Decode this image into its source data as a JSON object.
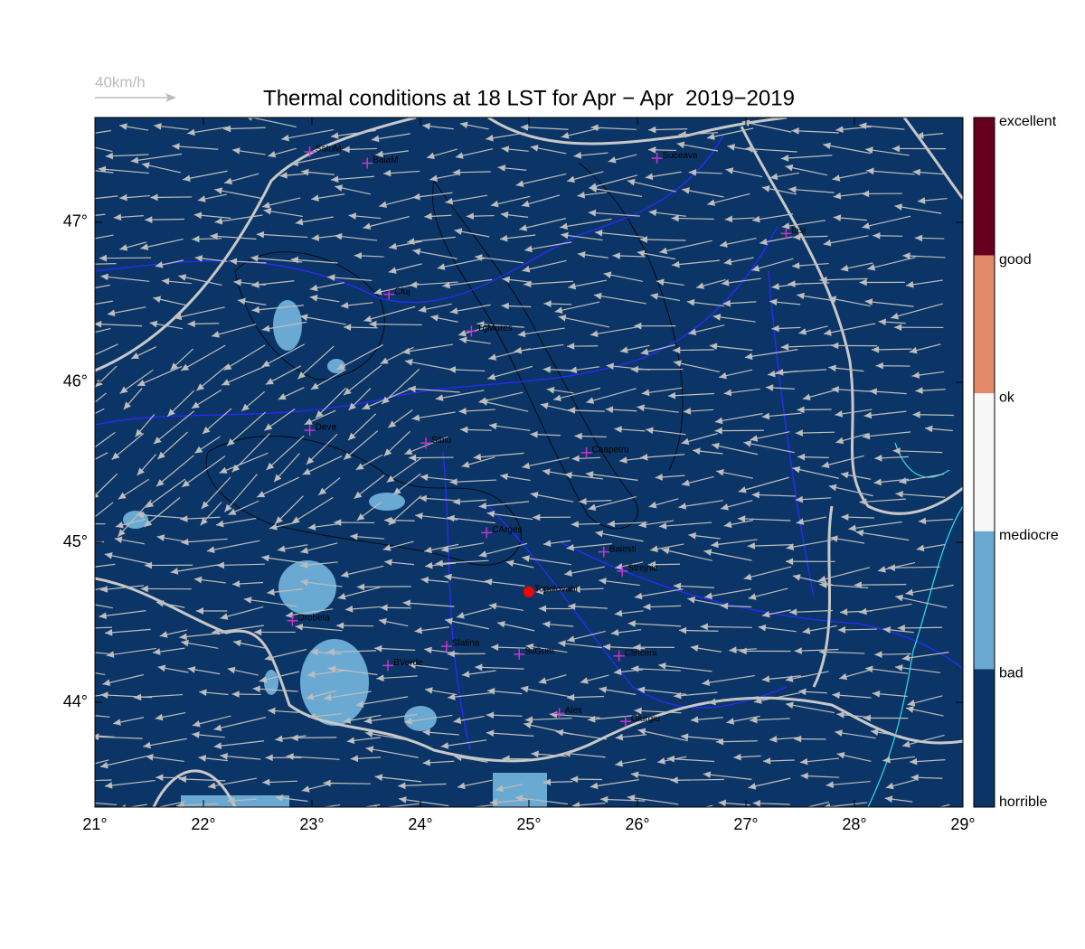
{
  "map": {
    "title": "Thermal conditions at 18 LST for Apr − Apr  2019−2019",
    "wind_scale": "40km/h",
    "xlim": [
      21,
      29
    ],
    "ylim": [
      43.345,
      47.655
    ],
    "xticks": [
      {
        "value": 21,
        "label": "21°"
      },
      {
        "value": 22,
        "label": "22°"
      },
      {
        "value": 23,
        "label": "23°"
      },
      {
        "value": 24,
        "label": "24°"
      },
      {
        "value": 25,
        "label": "25°"
      },
      {
        "value": 26,
        "label": "26°"
      },
      {
        "value": 27,
        "label": "27°"
      },
      {
        "value": 28,
        "label": "28°"
      },
      {
        "value": 29,
        "label": "29°"
      }
    ],
    "yticks": [
      {
        "value": 44,
        "label": "44°"
      },
      {
        "value": 45,
        "label": "45°"
      },
      {
        "value": 46,
        "label": "46°"
      },
      {
        "value": 47,
        "label": "47°"
      }
    ],
    "colorbar": {
      "labels": [
        "excellent",
        "good",
        "ok",
        "mediocre",
        "bad",
        "horrible"
      ],
      "colors": [
        "#67001f",
        "#e48a6a",
        "#f7f7f7",
        "#6aaad2",
        "#0b3566"
      ]
    },
    "cities": [
      {
        "name": "SatuM",
        "lon": 22.98,
        "lat": 47.44,
        "marker": "cross"
      },
      {
        "name": "BaiaM",
        "lon": 23.51,
        "lat": 47.37,
        "marker": "cross"
      },
      {
        "name": "Suceava",
        "lon": 26.18,
        "lat": 47.4,
        "marker": "cross"
      },
      {
        "name": "Iasi",
        "lon": 27.37,
        "lat": 46.93,
        "marker": "cross"
      },
      {
        "name": "Cluj",
        "lon": 23.71,
        "lat": 46.55,
        "marker": "cross"
      },
      {
        "name": "TgMures",
        "lon": 24.47,
        "lat": 46.32,
        "marker": "cross"
      },
      {
        "name": "Deva",
        "lon": 22.98,
        "lat": 45.7,
        "marker": "cross"
      },
      {
        "name": "Sibiu",
        "lon": 24.05,
        "lat": 45.62,
        "marker": "cross"
      },
      {
        "name": "Caapetru",
        "lon": 25.53,
        "lat": 45.56,
        "marker": "cross"
      },
      {
        "name": "CArges",
        "lon": 24.61,
        "lat": 45.06,
        "marker": "cross"
      },
      {
        "name": "Baiesti",
        "lon": 25.69,
        "lat": 44.94,
        "marker": "cross"
      },
      {
        "name": "Strejnic",
        "lon": 25.86,
        "lat": 44.82,
        "marker": "cross"
      },
      {
        "name": "Topolovani",
        "lon": 25.0,
        "lat": 44.69,
        "marker": "dot"
      },
      {
        "name": "Drobeta",
        "lon": 22.82,
        "lat": 44.51,
        "marker": "cross"
      },
      {
        "name": "Slatina",
        "lon": 24.24,
        "lat": 44.35,
        "marker": "cross"
      },
      {
        "name": "SilGum",
        "lon": 24.91,
        "lat": 44.3,
        "marker": "cross"
      },
      {
        "name": "Clinceni",
        "lon": 25.83,
        "lat": 44.29,
        "marker": "cross"
      },
      {
        "name": "BVerde",
        "lon": 23.7,
        "lat": 44.23,
        "marker": "cross"
      },
      {
        "name": "Alex",
        "lon": 25.28,
        "lat": 43.93,
        "marker": "cross"
      },
      {
        "name": "Giurgiu",
        "lon": 25.89,
        "lat": 43.88,
        "marker": "cross"
      }
    ]
  }
}
